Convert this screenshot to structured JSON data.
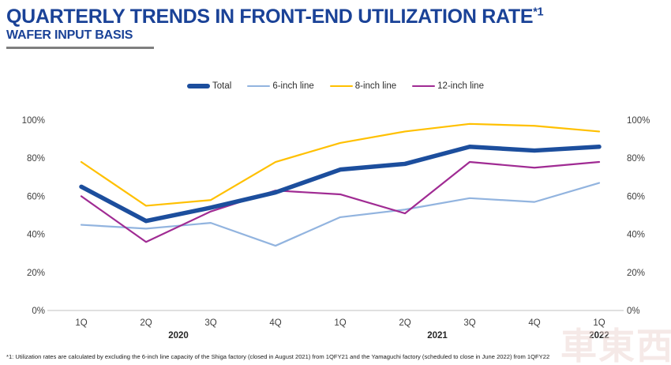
{
  "header": {
    "title": "QUARTERLY TRENDS IN FRONT-END UTILIZATION RATE",
    "title_superscript": "*1",
    "subtitle": "WAFER INPUT BASIS",
    "accent_color": "#1A4297"
  },
  "chart_data": {
    "type": "line",
    "title": "Quarterly trends in front-end utilization rate (wafer input basis)",
    "categories": [
      "1Q",
      "2Q",
      "3Q",
      "4Q",
      "1Q",
      "2Q",
      "3Q",
      "4Q",
      "1Q"
    ],
    "year_groups": [
      {
        "label": "2020",
        "center_index": 1.5
      },
      {
        "label": "2021",
        "center_index": 5.5
      },
      {
        "label": "2022",
        "center_index": 8
      }
    ],
    "y_ticks": [
      "0%",
      "20%",
      "40%",
      "60%",
      "80%",
      "100%"
    ],
    "ylim": [
      0,
      100
    ],
    "gridlines": false,
    "legend_position": "top-center",
    "axis_sides": "both",
    "axis_line_color": "#D6D6D6",
    "series": [
      {
        "name": "Total",
        "color": "#1C4E9D",
        "width": 5.5,
        "z": 4,
        "values": [
          65,
          47,
          54,
          62,
          74,
          77,
          86,
          84,
          86
        ]
      },
      {
        "name": "6-inch line",
        "color": "#92B4DF",
        "width": 2.2,
        "z": 1,
        "values": [
          45,
          43,
          46,
          34,
          49,
          53,
          59,
          57,
          67
        ]
      },
      {
        "name": "8-inch line",
        "color": "#FFC000",
        "width": 2.2,
        "z": 3,
        "values": [
          78,
          55,
          58,
          78,
          88,
          94,
          98,
          97,
          94
        ]
      },
      {
        "name": "12-inch line",
        "color": "#A02B93",
        "width": 2.2,
        "z": 2,
        "values": [
          60,
          36,
          52,
          63,
          61,
          51,
          78,
          75,
          78
        ]
      }
    ]
  },
  "footnote": "*1: Utilization rates are calculated by excluding the 6-inch line capacity of the Shiga factory (closed in August 2021) from 1QFY21 and the Yamaguchi factory (scheduled to close in June 2022) from 1QFY22",
  "watermark": {
    "text": "車東西",
    "color": "#EDD8D4"
  }
}
